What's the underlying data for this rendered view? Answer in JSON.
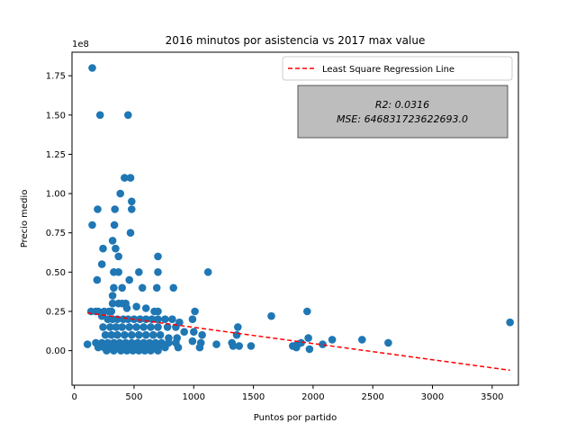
{
  "chart_data": {
    "type": "scatter",
    "title": "2016 minutos por asistencia vs 2017 max value",
    "xlabel": "Puntos por partido",
    "ylabel": "Precio medio",
    "y_offset_label": "1e8",
    "xlim": [
      -20,
      3720
    ],
    "ylim": [
      -0.22,
      1.9
    ],
    "y_unit_multiplier": 100000000,
    "x_ticks": [
      0,
      500,
      1000,
      1500,
      2000,
      2500,
      3000,
      3500
    ],
    "x_tick_labels": [
      "0",
      "500",
      "1000",
      "1500",
      "2000",
      "2500",
      "3000",
      "3500"
    ],
    "y_ticks": [
      0.0,
      0.25,
      0.5,
      0.75,
      1.0,
      1.25,
      1.5,
      1.75
    ],
    "y_tick_labels": [
      "0.00",
      "0.25",
      "0.50",
      "0.75",
      "1.00",
      "1.25",
      "1.50",
      "1.75"
    ],
    "grid": false,
    "legend": {
      "placement": "top-right",
      "entries": [
        {
          "label": "Least Square Regression Line",
          "style": "dashed",
          "color": "#ff0000"
        }
      ]
    },
    "annotation": {
      "r2_text": "R2: 0.0316",
      "mse_text": "MSE: 646831723622693.0",
      "box_color": "#bdbdbd"
    },
    "series": [
      {
        "kind": "scatter",
        "color": "#1f77b4",
        "points": [
          [
            150,
            1.8
          ],
          [
            215,
            1.5
          ],
          [
            450,
            1.5
          ],
          [
            420,
            1.1
          ],
          [
            470,
            1.1
          ],
          [
            385,
            1.0
          ],
          [
            480,
            0.95
          ],
          [
            480,
            0.9
          ],
          [
            195,
            0.9
          ],
          [
            340,
            0.9
          ],
          [
            150,
            0.8
          ],
          [
            335,
            0.8
          ],
          [
            470,
            0.75
          ],
          [
            320,
            0.7
          ],
          [
            240,
            0.65
          ],
          [
            345,
            0.65
          ],
          [
            370,
            0.6
          ],
          [
            700,
            0.6
          ],
          [
            230,
            0.55
          ],
          [
            330,
            0.5
          ],
          [
            370,
            0.5
          ],
          [
            540,
            0.5
          ],
          [
            700,
            0.5
          ],
          [
            1120,
            0.5
          ],
          [
            190,
            0.45
          ],
          [
            460,
            0.45
          ],
          [
            330,
            0.4
          ],
          [
            400,
            0.4
          ],
          [
            570,
            0.4
          ],
          [
            690,
            0.4
          ],
          [
            830,
            0.4
          ],
          [
            320,
            0.35
          ],
          [
            320,
            0.3
          ],
          [
            370,
            0.3
          ],
          [
            400,
            0.3
          ],
          [
            430,
            0.3
          ],
          [
            520,
            0.28
          ],
          [
            440,
            0.27
          ],
          [
            600,
            0.27
          ],
          [
            290,
            0.25
          ],
          [
            140,
            0.25
          ],
          [
            180,
            0.25
          ],
          [
            200,
            0.25
          ],
          [
            250,
            0.25
          ],
          [
            310,
            0.25
          ],
          [
            670,
            0.25
          ],
          [
            700,
            0.25
          ],
          [
            1010,
            0.25
          ],
          [
            1650,
            0.22
          ],
          [
            1950,
            0.25
          ],
          [
            230,
            0.22
          ],
          [
            280,
            0.2
          ],
          [
            320,
            0.2
          ],
          [
            360,
            0.2
          ],
          [
            410,
            0.2
          ],
          [
            450,
            0.2
          ],
          [
            500,
            0.2
          ],
          [
            550,
            0.2
          ],
          [
            600,
            0.2
          ],
          [
            650,
            0.2
          ],
          [
            700,
            0.2
          ],
          [
            760,
            0.2
          ],
          [
            820,
            0.2
          ],
          [
            880,
            0.18
          ],
          [
            990,
            0.2
          ],
          [
            1370,
            0.15
          ],
          [
            3650,
            0.18
          ],
          [
            240,
            0.15
          ],
          [
            300,
            0.15
          ],
          [
            350,
            0.15
          ],
          [
            400,
            0.15
          ],
          [
            460,
            0.15
          ],
          [
            520,
            0.15
          ],
          [
            580,
            0.15
          ],
          [
            640,
            0.15
          ],
          [
            700,
            0.15
          ],
          [
            780,
            0.15
          ],
          [
            850,
            0.15
          ],
          [
            920,
            0.12
          ],
          [
            1000,
            0.12
          ],
          [
            1070,
            0.1
          ],
          [
            1360,
            0.1
          ],
          [
            260,
            0.1
          ],
          [
            310,
            0.1
          ],
          [
            360,
            0.1
          ],
          [
            420,
            0.1
          ],
          [
            480,
            0.1
          ],
          [
            540,
            0.1
          ],
          [
            600,
            0.1
          ],
          [
            660,
            0.1
          ],
          [
            720,
            0.1
          ],
          [
            790,
            0.08
          ],
          [
            860,
            0.08
          ],
          [
            1960,
            0.08
          ],
          [
            2160,
            0.07
          ],
          [
            2410,
            0.07
          ],
          [
            2630,
            0.05
          ],
          [
            110,
            0.04
          ],
          [
            180,
            0.05
          ],
          [
            230,
            0.05
          ],
          [
            280,
            0.05
          ],
          [
            330,
            0.05
          ],
          [
            380,
            0.05
          ],
          [
            430,
            0.05
          ],
          [
            480,
            0.05
          ],
          [
            530,
            0.05
          ],
          [
            580,
            0.05
          ],
          [
            630,
            0.05
          ],
          [
            680,
            0.05
          ],
          [
            730,
            0.05
          ],
          [
            790,
            0.05
          ],
          [
            850,
            0.05
          ],
          [
            990,
            0.06
          ],
          [
            1060,
            0.05
          ],
          [
            1320,
            0.05
          ],
          [
            1870,
            0.04
          ],
          [
            1900,
            0.05
          ],
          [
            2080,
            0.04
          ],
          [
            1190,
            0.04
          ],
          [
            1330,
            0.03
          ],
          [
            1380,
            0.03
          ],
          [
            1480,
            0.03
          ],
          [
            1830,
            0.03
          ],
          [
            1860,
            0.02
          ],
          [
            1970,
            0.01
          ],
          [
            200,
            0.02
          ],
          [
            250,
            0.02
          ],
          [
            300,
            0.02
          ],
          [
            350,
            0.02
          ],
          [
            400,
            0.02
          ],
          [
            450,
            0.02
          ],
          [
            500,
            0.02
          ],
          [
            550,
            0.02
          ],
          [
            600,
            0.02
          ],
          [
            650,
            0.02
          ],
          [
            700,
            0.02
          ],
          [
            760,
            0.02
          ],
          [
            870,
            0.02
          ],
          [
            1050,
            0.02
          ],
          [
            270,
            0.0
          ],
          [
            330,
            0.0
          ],
          [
            390,
            0.0
          ],
          [
            440,
            0.0
          ],
          [
            490,
            0.0
          ],
          [
            540,
            0.0
          ],
          [
            590,
            0.0
          ],
          [
            640,
            0.0
          ],
          [
            700,
            0.0
          ]
        ]
      },
      {
        "kind": "regression_line",
        "color": "#ff0000",
        "x": [
          110,
          3650
        ],
        "y": [
          0.24,
          -0.125
        ]
      }
    ]
  }
}
